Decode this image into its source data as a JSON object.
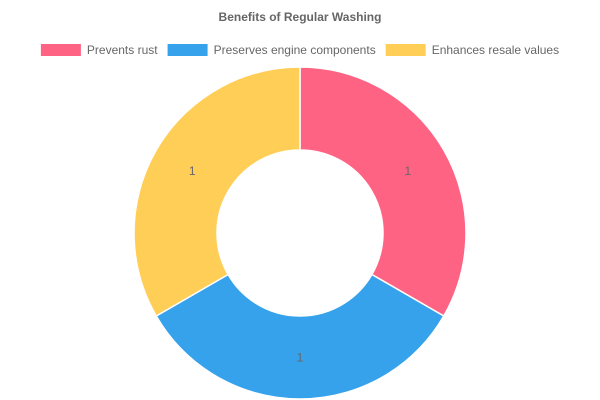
{
  "chart_data": {
    "type": "pie",
    "variant": "doughnut",
    "title": "Benefits of Regular Washing",
    "legend_position": "top",
    "categories": [
      "Prevents rust",
      "Preserves engine components",
      "Enhances resale values"
    ],
    "values": [
      1,
      1,
      1
    ],
    "data_labels": [
      "1",
      "1",
      "1"
    ],
    "colors": [
      "#ff6384",
      "#36a2eb",
      "#ffce56"
    ]
  }
}
